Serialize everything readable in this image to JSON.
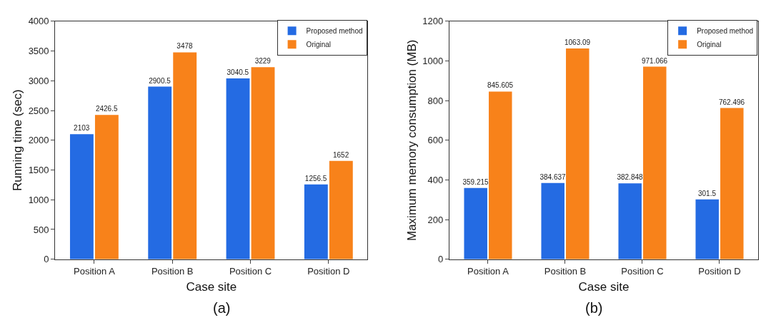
{
  "chart_data": [
    {
      "type": "bar",
      "xlabel": "Case site",
      "ylabel": "Running time (sec)",
      "categories": [
        "Position A",
        "Position B",
        "Position C",
        "Position D"
      ],
      "series": [
        {
          "name": "Proposed method",
          "color": "#246be3",
          "values": [
            2103,
            2900.5,
            3040.5,
            1256.5
          ]
        },
        {
          "name": "Original",
          "color": "#f8821a",
          "values": [
            2426.5,
            3478,
            3229,
            1652
          ]
        }
      ],
      "ylim": [
        0,
        4000
      ],
      "yticks": [
        0,
        500,
        1000,
        1500,
        2000,
        2500,
        3000,
        3500,
        4000
      ],
      "data_labels": true,
      "legend": "top right",
      "annotations": [
        "(a)"
      ]
    },
    {
      "type": "bar",
      "xlabel": "Case site",
      "ylabel": "Maximum memory consumption (MB)",
      "categories": [
        "Position A",
        "Position B",
        "Position C",
        "Position D"
      ],
      "series": [
        {
          "name": "Proposed method",
          "color": "#246be3",
          "values": [
            359.215,
            384.637,
            382.848,
            301.5
          ]
        },
        {
          "name": "Original",
          "color": "#f8821a",
          "values": [
            845.605,
            1063.09,
            971.066,
            762.496
          ]
        }
      ],
      "ylim": [
        0,
        1200
      ],
      "yticks": [
        0,
        200,
        400,
        600,
        800,
        1000,
        1200
      ],
      "data_labels": true,
      "legend": "top right",
      "annotations": [
        "(b)"
      ]
    }
  ]
}
